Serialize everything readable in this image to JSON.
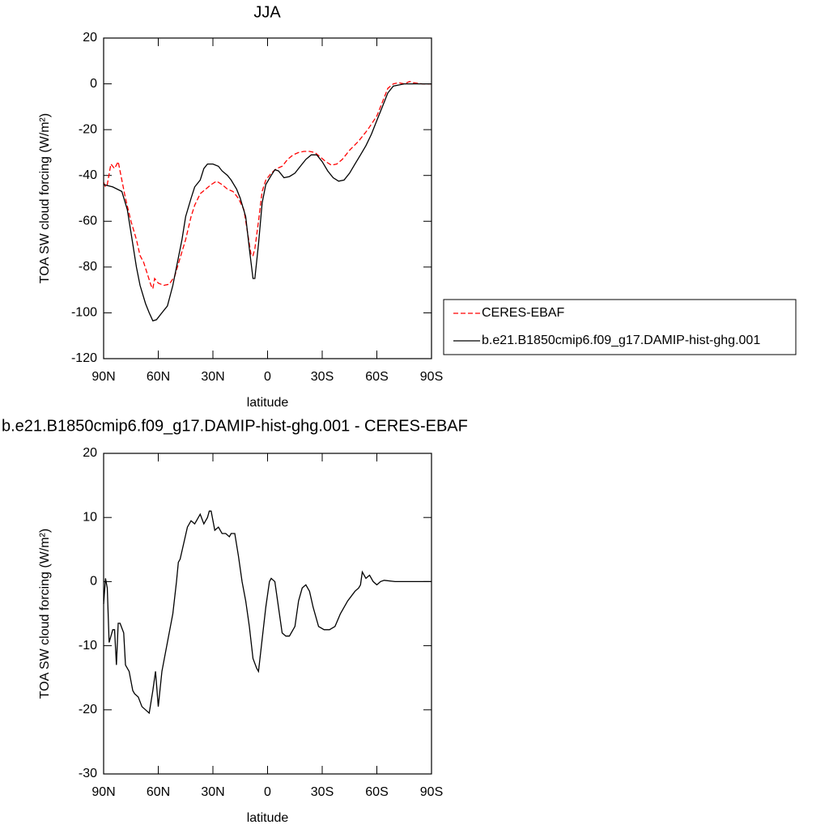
{
  "chart_data": [
    {
      "type": "line",
      "title": "JJA",
      "xlabel": "latitude",
      "ylabel": "TOA SW cloud forcing (W/m²)",
      "xlim": [
        90,
        -90
      ],
      "ylim": [
        -120,
        20
      ],
      "xticks": [
        {
          "value": 90,
          "label": "90N"
        },
        {
          "value": 60,
          "label": "60N"
        },
        {
          "value": 30,
          "label": "30N"
        },
        0,
        {
          "value": -30,
          "label": "30S"
        },
        {
          "value": -60,
          "label": "60S"
        },
        {
          "value": -90,
          "label": "90S"
        }
      ],
      "yticks": [
        -120,
        -100,
        -80,
        -60,
        -40,
        -20,
        0,
        20
      ],
      "legend": "right",
      "series": [
        {
          "name": "CERES-EBAF",
          "color": "#ff0000",
          "linestyle": "dashed",
          "x": [
            90,
            89,
            88,
            86,
            84,
            82,
            80,
            78,
            75,
            72,
            70,
            68,
            66,
            64,
            63,
            62,
            60,
            57,
            54,
            51,
            48,
            45,
            42,
            40,
            37,
            34,
            31,
            28,
            25,
            22,
            19,
            16,
            13,
            11,
            9,
            8,
            7,
            5,
            3,
            1,
            -2,
            -5,
            -8,
            -11,
            -14,
            -17,
            -20,
            -23,
            -26,
            -29,
            -32,
            -35,
            -38,
            -41,
            -45,
            -50,
            -55,
            -60,
            -63,
            -66,
            -69,
            -72,
            -75,
            -78,
            -80,
            -85,
            -90
          ],
          "values": [
            -43,
            -45,
            -44,
            -35,
            -37,
            -34,
            -42,
            -50,
            -60,
            -68,
            -75,
            -78,
            -83,
            -88,
            -89.5,
            -85,
            -87,
            -88,
            -87.5,
            -84,
            -76,
            -68,
            -58,
            -53,
            -48,
            -46,
            -44,
            -42.5,
            -44,
            -46,
            -47,
            -50,
            -55,
            -65,
            -75,
            -75,
            -72,
            -60,
            -47,
            -42,
            -39,
            -37,
            -36,
            -33,
            -31,
            -30,
            -29.5,
            -29.5,
            -30,
            -32,
            -34,
            -35.5,
            -35,
            -33,
            -29,
            -25,
            -20,
            -14,
            -8,
            -2,
            0,
            0.5,
            0,
            1,
            0.5,
            0,
            0
          ]
        },
        {
          "name": "b.e21.B1850cmip6.f09_g17.DAMIP-hist-ghg.001",
          "color": "#000000",
          "linestyle": "solid",
          "x": [
            90,
            85,
            80,
            77,
            75,
            72,
            70,
            67,
            65,
            63,
            61,
            58,
            55,
            52,
            50,
            47,
            45,
            42,
            40,
            37,
            35,
            33,
            30,
            27,
            25,
            22,
            20,
            17,
            15,
            12,
            10,
            8,
            7,
            5,
            3,
            1,
            -2,
            -4,
            -6,
            -9,
            -12,
            -15,
            -18,
            -21,
            -24,
            -27,
            -30,
            -33,
            -36,
            -39,
            -42,
            -45,
            -48,
            -51,
            -54,
            -57,
            -60,
            -63,
            -66,
            -69,
            -72,
            -75,
            -80,
            -85,
            -90
          ],
          "values": [
            -44,
            -45,
            -47,
            -55,
            -65,
            -80,
            -88,
            -96,
            -100,
            -103.5,
            -103,
            -100,
            -97,
            -88,
            -80,
            -68,
            -58,
            -50,
            -45,
            -42,
            -37,
            -35,
            -35,
            -36,
            -38,
            -40,
            -42,
            -46,
            -50,
            -58,
            -72,
            -85,
            -85,
            -70,
            -52,
            -44,
            -40,
            -37.5,
            -38,
            -41,
            -40.5,
            -39,
            -36,
            -33,
            -31,
            -31,
            -34,
            -38,
            -41,
            -42.5,
            -42,
            -39,
            -35,
            -31,
            -27,
            -22,
            -16,
            -10,
            -4,
            -1,
            -0.5,
            0,
            0,
            0,
            0
          ]
        }
      ]
    },
    {
      "type": "line",
      "title": "b.e21.B1850cmip6.f09_g17.DAMIP-hist-ghg.001 - CERES-EBAF",
      "xlabel": "latitude",
      "ylabel": "TOA SW cloud forcing (W/m²)",
      "xlim": [
        90,
        -90
      ],
      "ylim": [
        -30,
        20
      ],
      "xticks": [
        {
          "value": 90,
          "label": "90N"
        },
        {
          "value": 60,
          "label": "60N"
        },
        {
          "value": 30,
          "label": "30N"
        },
        0,
        {
          "value": -30,
          "label": "30S"
        },
        {
          "value": -60,
          "label": "60S"
        },
        {
          "value": -90,
          "label": "90S"
        }
      ],
      "yticks": [
        -30,
        -20,
        -10,
        0,
        10,
        20
      ],
      "series": [
        {
          "color": "#000000",
          "linestyle": "solid",
          "x": [
            90,
            89,
            88,
            87,
            85,
            84,
            83,
            82,
            81,
            79,
            78,
            76,
            74,
            73,
            71,
            69,
            67,
            65,
            63,
            61.5,
            60,
            58,
            56,
            54,
            52,
            50,
            49,
            48,
            46,
            44,
            42,
            40,
            38,
            37,
            35,
            33,
            32,
            31,
            29,
            27,
            25,
            23,
            21,
            20,
            18,
            16,
            14,
            12,
            10,
            8,
            6,
            5,
            3,
            1,
            -1,
            -2,
            -4,
            -6,
            -8,
            -10,
            -12,
            -15,
            -17,
            -19,
            -21,
            -23,
            -25,
            -28,
            -31,
            -34,
            -37,
            -40,
            -44,
            -48,
            -50,
            -51,
            -52,
            -54,
            -56,
            -58,
            -60,
            -62,
            -64,
            -70,
            -80,
            -90
          ],
          "values": [
            -3.5,
            0.5,
            -1,
            -9.5,
            -7.5,
            -7.5,
            -13,
            -6.5,
            -6.5,
            -8,
            -13,
            -14,
            -17,
            -17.5,
            -18,
            -19.5,
            -20,
            -20.5,
            -17,
            -14,
            -19.5,
            -14,
            -11,
            -8,
            -5,
            0,
            3,
            3.5,
            6,
            8.5,
            9.5,
            9,
            10,
            10.5,
            9,
            10,
            11,
            11,
            8,
            8.5,
            7.5,
            7.5,
            7,
            7.5,
            7.5,
            4,
            0,
            -3,
            -7,
            -12,
            -13.5,
            -14,
            -9,
            -4,
            0,
            0.5,
            0,
            -4,
            -8,
            -8.5,
            -8.5,
            -7,
            -3,
            -1,
            -0.5,
            -1.5,
            -4,
            -7,
            -7.5,
            -7.5,
            -7,
            -5,
            -3,
            -1.5,
            -1,
            -0.5,
            1.5,
            0.5,
            1,
            0,
            -0.5,
            0,
            0.2,
            0,
            0,
            0
          ]
        }
      ]
    }
  ]
}
